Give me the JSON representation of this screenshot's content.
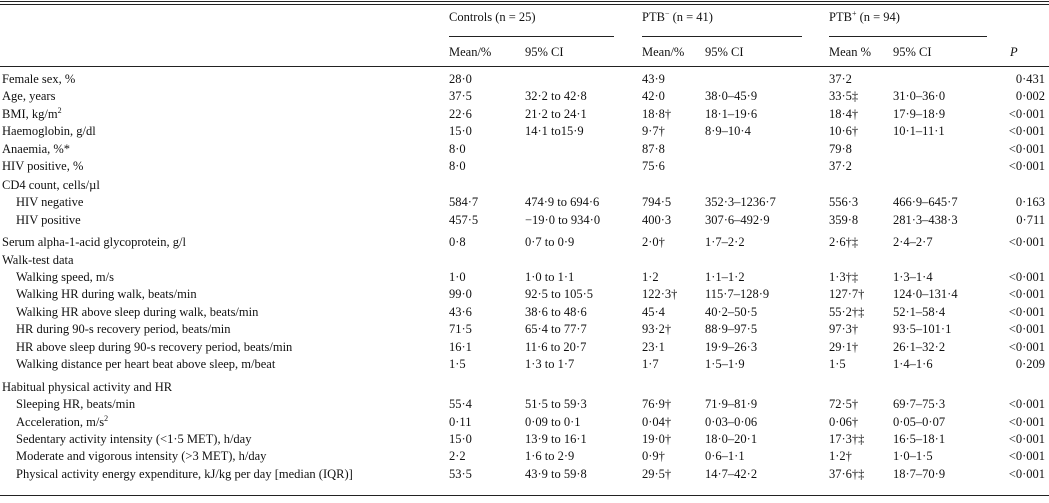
{
  "header": {
    "groups": [
      {
        "label": "Controls",
        "n": "(n = 25)"
      },
      {
        "label": "PTB",
        "sup": "−",
        "n": "(n = 41)"
      },
      {
        "label": "PTB",
        "sup": "+",
        "n": "(n = 94)"
      }
    ],
    "columns": [
      "Mean/%",
      "95% CI",
      "Mean/%",
      "95% CI",
      "Mean %",
      "95% CI",
      "P"
    ]
  },
  "table": {
    "rows": [
      {
        "label": "Female sex, %",
        "cells": [
          "28·0",
          null,
          "43·9",
          null,
          "37·2",
          null,
          "0·431"
        ]
      },
      {
        "label": "Age, years",
        "cells": [
          "37·5",
          "32·2 to 42·8",
          "42·0",
          "38·0–45·9",
          "33·5‡",
          "31·0–36·0",
          "0·002"
        ]
      },
      {
        "label": "BMI, kg/m",
        "label_sup": "2",
        "cells": [
          "22·6",
          "21·2 to 24·1",
          "18·8†",
          "18·1–19·6",
          "18·4†",
          "17·9–18·9",
          "<0·001"
        ]
      },
      {
        "label": "Haemoglobin, g/dl",
        "cells": [
          "15·0",
          "14·1 to15·9",
          "9·7†",
          "8·9–10·4",
          "10·6†",
          "10·1–11·1",
          "<0·001"
        ]
      },
      {
        "label": "Anaemia, %*",
        "cells": [
          "8·0",
          null,
          "87·8",
          null,
          "79·8",
          null,
          "<0·001"
        ]
      },
      {
        "label": "HIV positive, %",
        "cells": [
          "8·0",
          null,
          "75·6",
          null,
          "37·2",
          null,
          "<0·001"
        ]
      },
      {
        "label": "CD4 count, cells/µl"
      },
      {
        "label": "HIV negative",
        "indent": 1,
        "cells": [
          "584·7",
          "474·9 to 694·6",
          "794·5",
          "352·3–1236·7",
          "556·3",
          "466·9–645·7",
          "0·163"
        ]
      },
      {
        "label": "HIV positive",
        "indent": 1,
        "cells": [
          "457·5",
          "−19·0 to 934·0",
          "400·3",
          "307·6–492·9",
          "359·8",
          "281·3–438·3",
          "0·711"
        ]
      },
      {
        "label": "Serum alpha-1-acid glycoprotein, g/l",
        "cells": [
          "0·8",
          "0·7 to 0·9",
          "2·0†",
          "1·7–2·2",
          "2·6†‡",
          "2·4–2·7",
          "<0·001"
        ]
      },
      {
        "label": "Walk-test data"
      },
      {
        "label": "Walking speed, m/s",
        "indent": 1,
        "cells": [
          "1·0",
          "1·0 to 1·1",
          "1·2",
          "1·1–1·2",
          "1·3†‡",
          "1·3–1·4",
          "<0·001"
        ]
      },
      {
        "label": "Walking HR during walk, beats/min",
        "indent": 1,
        "cells": [
          "99·0",
          "92·5 to 105·5",
          "122·3†",
          "115·7–128·9",
          "127·7†",
          "124·0–131·4",
          "<0·001"
        ]
      },
      {
        "label": "Walking HR above sleep during walk, beats/min",
        "indent": 1,
        "cells": [
          "43·6",
          "38·6 to 48·6",
          "45·4",
          "40·2–50·5",
          "55·2†‡",
          "52·1–58·4",
          "<0·001"
        ]
      },
      {
        "label": "HR during 90-s recovery period, beats/min",
        "indent": 1,
        "cells": [
          "71·5",
          "65·4 to 77·7",
          "93·2†",
          "88·9–97·5",
          "97·3†",
          "93·5–101·1",
          "<0·001"
        ]
      },
      {
        "label": "HR above sleep during 90-s recovery period, beats/min",
        "indent": 1,
        "cells": [
          "16·1",
          "11·6 to 20·7",
          "23·1",
          "19·9–26·3",
          "29·1†",
          "26·1–32·2",
          "<0·001"
        ]
      },
      {
        "label": "Walking distance per heart beat above sleep, m/beat",
        "indent": 1,
        "cells": [
          "1·5",
          "1·3 to 1·7",
          "1·7",
          "1·5–1·9",
          "1·5",
          "1·4–1·6",
          "0·209"
        ]
      },
      {
        "label": "Habitual physical activity and HR"
      },
      {
        "label": "Sleeping HR, beats/min",
        "indent": 1,
        "cells": [
          "55·4",
          "51·5 to 59·3",
          "76·9†",
          "71·9–81·9",
          "72·5†",
          "69·7–75·3",
          "<0·001"
        ]
      },
      {
        "label": "Acceleration, m/s",
        "label_sup": "2",
        "indent": 1,
        "cells": [
          "0·11",
          "0·09 to 0·1",
          "0·04†",
          "0·03–0·06",
          "0·06†",
          "0·05–0·07",
          "<0·001"
        ]
      },
      {
        "label": "Sedentary activity intensity (<1·5 MET), h/day",
        "indent": 1,
        "cells": [
          "15·0",
          "13·9 to 16·1",
          "19·0†",
          "18·0–20·1",
          "17·3†‡",
          "16·5–18·1",
          "<0·001"
        ]
      },
      {
        "label": "Moderate and vigorous intensity (>3 MET), h/day",
        "indent": 1,
        "cells": [
          "2·2",
          "1·6 to 2·9",
          "0·9†",
          "0·6–1·1",
          "1·2†",
          "1·0–1·5",
          "<0·001"
        ]
      },
      {
        "label": "Physical activity energy expenditure, kJ/kg per day [median (IQR)]",
        "indent": 1,
        "cells": [
          "53·5",
          "43·9 to 59·8",
          "29·5†",
          "14·7–42·2",
          "37·6†‡",
          "18·7–70·9",
          "<0·001"
        ]
      }
    ]
  }
}
